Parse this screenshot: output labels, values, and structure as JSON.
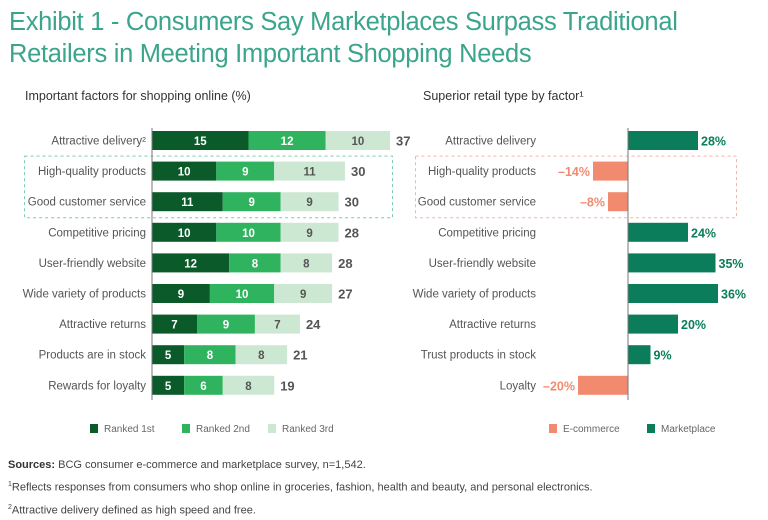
{
  "title": "Exhibit 1 - Consumers Say Marketplaces Surpass Traditional Retailers in Meeting Important Shopping Needs",
  "colors": {
    "title": "#3aa58c",
    "ranked_1st": "#0b5a2a",
    "ranked_2nd": "#2fb35e",
    "ranked_3rd": "#cde8d2",
    "ecommerce": "#f28a70",
    "marketplace": "#0b7d5a",
    "highlight_left": "#7fcbb0",
    "highlight_right": "#f5b3a5"
  },
  "chart_data": [
    {
      "type": "bar",
      "orientation": "horizontal",
      "stacked": true,
      "title": "Important factors for shopping online (%)",
      "categories": [
        "Attractive delivery²",
        "High-quality products",
        "Good customer service",
        "Competitive pricing",
        "User-friendly website",
        "Wide variety of products",
        "Attractive returns",
        "Products are in stock",
        "Rewards for loyalty"
      ],
      "series": [
        {
          "name": "Ranked 1st",
          "values": [
            15,
            10,
            11,
            10,
            12,
            9,
            7,
            5,
            5
          ]
        },
        {
          "name": "Ranked 2nd",
          "values": [
            12,
            9,
            9,
            10,
            8,
            10,
            9,
            8,
            6
          ]
        },
        {
          "name": "Ranked 3rd",
          "values": [
            10,
            11,
            9,
            9,
            8,
            9,
            7,
            8,
            8
          ]
        }
      ],
      "totals": [
        37,
        30,
        30,
        28,
        28,
        27,
        24,
        21,
        19
      ],
      "highlighted_categories": [
        "High-quality products",
        "Good customer service"
      ],
      "legend": "bottom",
      "grid": false,
      "xlim": [
        0,
        37
      ]
    },
    {
      "type": "bar",
      "orientation": "horizontal",
      "diverging": true,
      "title": "Superior retail type by factor¹",
      "categories": [
        "Attractive delivery",
        "High-quality products",
        "Good customer service",
        "Competitive pricing",
        "User-friendly website",
        "Wide variety of products",
        "Attractive returns",
        "Trust products in stock",
        "Loyalty"
      ],
      "values": [
        28,
        -14,
        -8,
        24,
        35,
        36,
        20,
        9,
        -20
      ],
      "labels": [
        "28%",
        "–14%",
        "–8%",
        "24%",
        "35%",
        "36%",
        "20%",
        "9%",
        "–20%"
      ],
      "negative_series": "E-commerce",
      "positive_series": "Marketplace",
      "highlighted_categories": [
        "High-quality products",
        "Good customer service"
      ],
      "legend": "bottom",
      "grid": false,
      "xlim": [
        -20,
        36
      ]
    }
  ],
  "notes": {
    "sources_label": "Sources:",
    "sources_text": " BCG consumer e-commerce and marketplace survey, n=1,542.",
    "footnote1_marker": "1",
    "footnote1_text": "Reflects responses from consumers who shop online in groceries, fashion, health and beauty, and personal electronics.",
    "footnote2_marker": "2",
    "footnote2_text": "Attractive delivery defined as high speed and free."
  }
}
